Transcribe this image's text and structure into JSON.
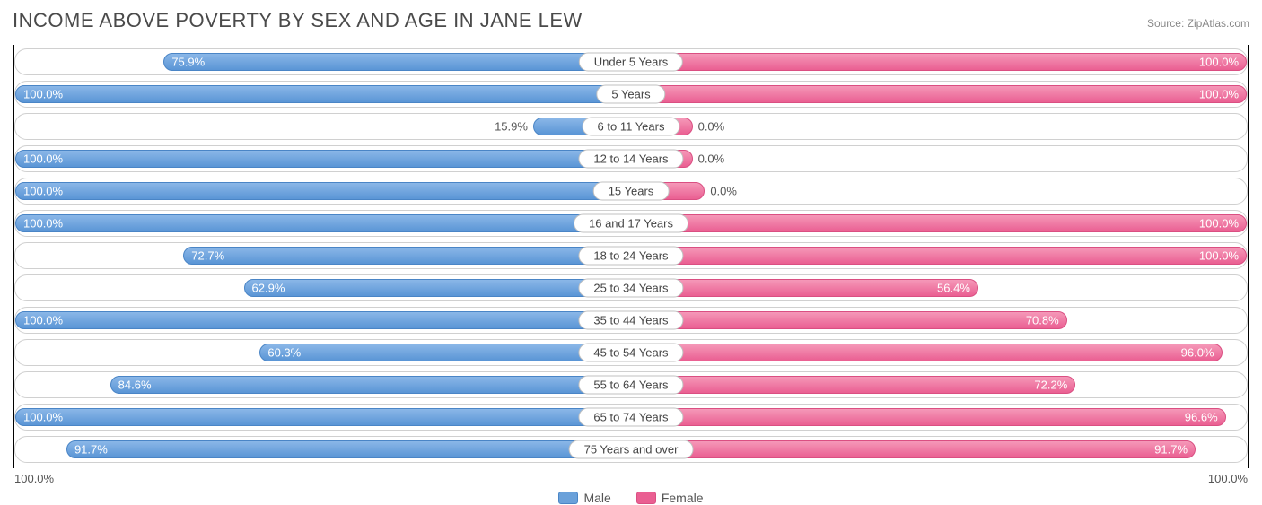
{
  "title": "INCOME ABOVE POVERTY BY SEX AND AGE IN JANE LEW",
  "source": "Source: ZipAtlas.com",
  "chart": {
    "type": "diverging-bar",
    "axis_min_label": "100.0%",
    "axis_max_label": "100.0%",
    "male_color": "#6aa1da",
    "female_color": "#ea5f92",
    "background_color": "#ffffff",
    "border_color": "#d0d0d0",
    "label_outside_threshold": 30,
    "categories": [
      {
        "label": "Under 5 Years",
        "male": 75.9,
        "male_label": "75.9%",
        "female": 100.0,
        "female_label": "100.0%"
      },
      {
        "label": "5 Years",
        "male": 100.0,
        "male_label": "100.0%",
        "female": 100.0,
        "female_label": "100.0%"
      },
      {
        "label": "6 to 11 Years",
        "male": 15.9,
        "male_label": "15.9%",
        "female": 0.0,
        "female_label": "0.0%",
        "female_stub": 10
      },
      {
        "label": "12 to 14 Years",
        "male": 100.0,
        "male_label": "100.0%",
        "female": 0.0,
        "female_label": "0.0%",
        "female_stub": 10
      },
      {
        "label": "15 Years",
        "male": 100.0,
        "male_label": "100.0%",
        "female": 0.0,
        "female_label": "0.0%",
        "female_stub": 12
      },
      {
        "label": "16 and 17 Years",
        "male": 100.0,
        "male_label": "100.0%",
        "female": 100.0,
        "female_label": "100.0%"
      },
      {
        "label": "18 to 24 Years",
        "male": 72.7,
        "male_label": "72.7%",
        "female": 100.0,
        "female_label": "100.0%"
      },
      {
        "label": "25 to 34 Years",
        "male": 62.9,
        "male_label": "62.9%",
        "female": 56.4,
        "female_label": "56.4%"
      },
      {
        "label": "35 to 44 Years",
        "male": 100.0,
        "male_label": "100.0%",
        "female": 70.8,
        "female_label": "70.8%"
      },
      {
        "label": "45 to 54 Years",
        "male": 60.3,
        "male_label": "60.3%",
        "female": 96.0,
        "female_label": "96.0%"
      },
      {
        "label": "55 to 64 Years",
        "male": 84.6,
        "male_label": "84.6%",
        "female": 72.2,
        "female_label": "72.2%"
      },
      {
        "label": "65 to 74 Years",
        "male": 100.0,
        "male_label": "100.0%",
        "female": 96.6,
        "female_label": "96.6%"
      },
      {
        "label": "75 Years and over",
        "male": 91.7,
        "male_label": "91.7%",
        "female": 91.7,
        "female_label": "91.7%"
      }
    ]
  },
  "legend": {
    "male": "Male",
    "female": "Female"
  }
}
